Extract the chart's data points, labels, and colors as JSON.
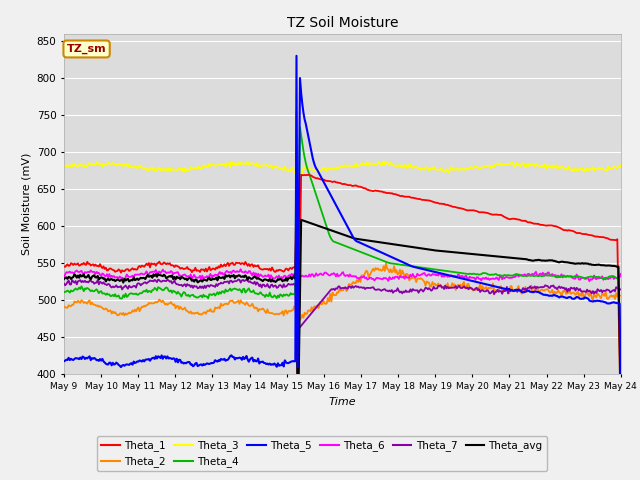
{
  "title": "TZ Soil Moisture",
  "xlabel": "Time",
  "ylabel": "Soil Moisture (mV)",
  "ylim": [
    400,
    860
  ],
  "yticks": [
    400,
    450,
    500,
    550,
    600,
    650,
    700,
    750,
    800,
    850
  ],
  "date_labels": [
    "May 9",
    "May 10",
    "May 11",
    "May 12",
    "May 13",
    "May 14",
    "May 15",
    "May 16",
    "May 17",
    "May 18",
    "May 19",
    "May 20",
    "May 21",
    "May 22",
    "May 23",
    "May 24"
  ],
  "n_points": 480,
  "spike_idx": 200,
  "colors": {
    "Theta_1": "#ff0000",
    "Theta_2": "#ff8800",
    "Theta_3": "#ffff00",
    "Theta_4": "#00bb00",
    "Theta_5": "#0000ff",
    "Theta_6": "#ff00ff",
    "Theta_7": "#8800aa",
    "Theta_avg": "#000000"
  },
  "bg_color": "#dcdcdc",
  "fig_bg_color": "#f0f0f0",
  "legend_box_color": "#ffffcc",
  "legend_box_edge": "#cc8800",
  "legend_box_text": "TZ_sm",
  "legend_box_text_color": "#990000"
}
